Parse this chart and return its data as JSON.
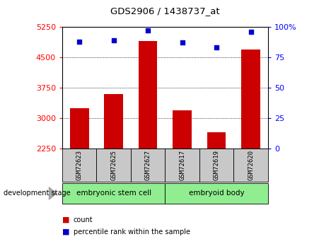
{
  "title": "GDS2906 / 1438737_at",
  "samples": [
    "GSM72623",
    "GSM72625",
    "GSM72627",
    "GSM72617",
    "GSM72619",
    "GSM72620"
  ],
  "counts": [
    3250,
    3600,
    4900,
    3200,
    2650,
    4700
  ],
  "percentiles": [
    88,
    89,
    97,
    87,
    83,
    96
  ],
  "ylim_left": [
    2250,
    5250
  ],
  "ylim_right": [
    0,
    100
  ],
  "yticks_left": [
    2250,
    3000,
    3750,
    4500,
    5250
  ],
  "yticks_right": [
    0,
    25,
    50,
    75,
    100
  ],
  "ytick_labels_right": [
    "0",
    "25",
    "50",
    "75",
    "100%"
  ],
  "bar_color": "#cc0000",
  "dot_color": "#0000cc",
  "group1": {
    "label": "embryonic stem cell",
    "indices": [
      0,
      1,
      2
    ]
  },
  "group2": {
    "label": "embryoid body",
    "indices": [
      3,
      4,
      5
    ]
  },
  "group_bg_color": "#90ee90",
  "sample_bg_color": "#c8c8c8",
  "stage_label": "development stage",
  "legend_count_label": "count",
  "legend_pct_label": "percentile rank within the sample"
}
